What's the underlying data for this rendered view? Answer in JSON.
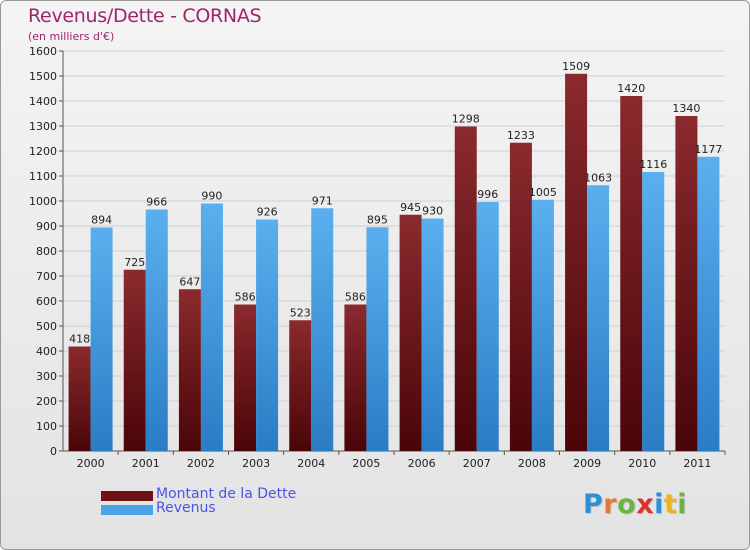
{
  "header": {
    "title": "Revenus/Dette - CORNAS",
    "subtitle": "(en milliers d'€)"
  },
  "chart_data": {
    "type": "bar",
    "categories": [
      "2000",
      "2001",
      "2002",
      "2003",
      "2004",
      "2005",
      "2006",
      "2007",
      "2008",
      "2009",
      "2010",
      "2011"
    ],
    "series": [
      {
        "name": "Montant de la Dette",
        "values": [
          418,
          725,
          647,
          586,
          523,
          586,
          945,
          1298,
          1233,
          1509,
          1420,
          1340
        ],
        "color": "#7a1a1f"
      },
      {
        "name": "Revenus",
        "values": [
          894,
          966,
          990,
          926,
          971,
          895,
          930,
          996,
          1005,
          1063,
          1116,
          1177
        ],
        "color": "#4aa3e6"
      }
    ],
    "ylim": [
      0,
      1600
    ],
    "yticks": [
      0,
      100,
      200,
      300,
      400,
      500,
      600,
      700,
      800,
      900,
      1000,
      1100,
      1200,
      1300,
      1400,
      1500,
      1600
    ],
    "grid": true,
    "legend_position": "bottom-left"
  },
  "legend": {
    "items": [
      {
        "label": "Montant de la Dette",
        "color": "#6e1216"
      },
      {
        "label": "Revenus",
        "color": "#4aa3e6"
      }
    ]
  },
  "logo": {
    "letters": [
      {
        "ch": "P",
        "color": "#2f8fd6"
      },
      {
        "ch": "r",
        "color": "#e8782a"
      },
      {
        "ch": "o",
        "color": "#6cb33f"
      },
      {
        "ch": "x",
        "color": "#d8342c"
      },
      {
        "ch": "i",
        "color": "#2f8fd6"
      },
      {
        "ch": "t",
        "color": "#f0b323"
      },
      {
        "ch": "i",
        "color": "#6cb33f"
      }
    ]
  }
}
